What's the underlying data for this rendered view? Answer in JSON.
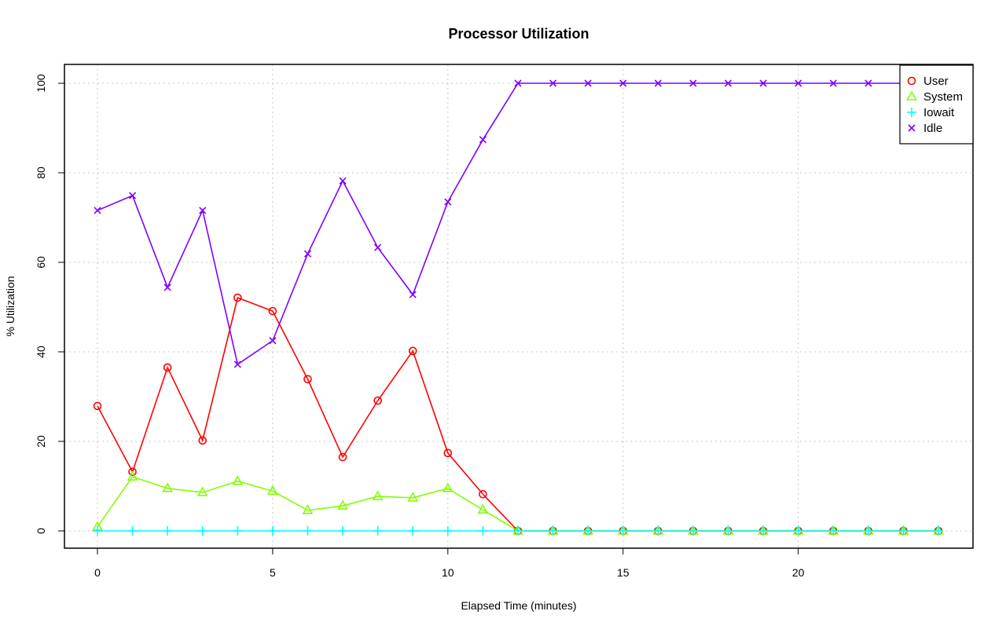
{
  "chart_data": {
    "type": "line",
    "title": "Processor Utilization",
    "xlabel": "Elapsed Time (minutes)",
    "ylabel": "% Utilization",
    "xlim": [
      0,
      24
    ],
    "ylim": [
      0,
      100
    ],
    "xticks": [
      0,
      5,
      10,
      15,
      20
    ],
    "yticks": [
      0,
      20,
      40,
      60,
      80,
      100
    ],
    "grid": true,
    "legend_position": "top-right",
    "x": [
      0,
      1,
      2,
      3,
      4,
      5,
      6,
      7,
      8,
      9,
      10,
      11,
      12,
      13,
      14,
      15,
      16,
      17,
      18,
      19,
      20,
      21,
      22,
      23,
      24
    ],
    "series": [
      {
        "name": "User",
        "color": "#ff0000",
        "marker": "circle",
        "values": [
          27.9,
          13.2,
          36.5,
          20.2,
          52.1,
          49.1,
          33.9,
          16.5,
          29.1,
          40.2,
          17.4,
          8.2,
          0,
          0,
          0,
          0,
          0,
          0,
          0,
          0,
          0,
          0,
          0,
          0,
          0
        ]
      },
      {
        "name": "System",
        "color": "#80ff00",
        "marker": "triangle",
        "values": [
          0.9,
          12.1,
          9.5,
          8.6,
          11.1,
          8.9,
          4.6,
          5.6,
          7.7,
          7.4,
          9.5,
          4.7,
          0,
          0,
          0,
          0,
          0,
          0,
          0,
          0,
          0,
          0,
          0,
          0,
          0
        ]
      },
      {
        "name": "Iowait",
        "color": "#00ffff",
        "marker": "plus",
        "values": [
          0,
          0,
          0,
          0,
          0,
          0,
          0,
          0,
          0,
          0,
          0,
          0,
          0,
          0,
          0,
          0,
          0,
          0,
          0,
          0,
          0,
          0,
          0,
          0,
          0
        ]
      },
      {
        "name": "Idle",
        "color": "#8000ff",
        "marker": "cross",
        "values": [
          71.6,
          74.9,
          54.4,
          71.6,
          37.2,
          42.5,
          61.9,
          78.2,
          63.3,
          52.8,
          73.5,
          87.4,
          100,
          100,
          100,
          100,
          100,
          100,
          100,
          100,
          100,
          100,
          100,
          100,
          100
        ]
      }
    ]
  }
}
